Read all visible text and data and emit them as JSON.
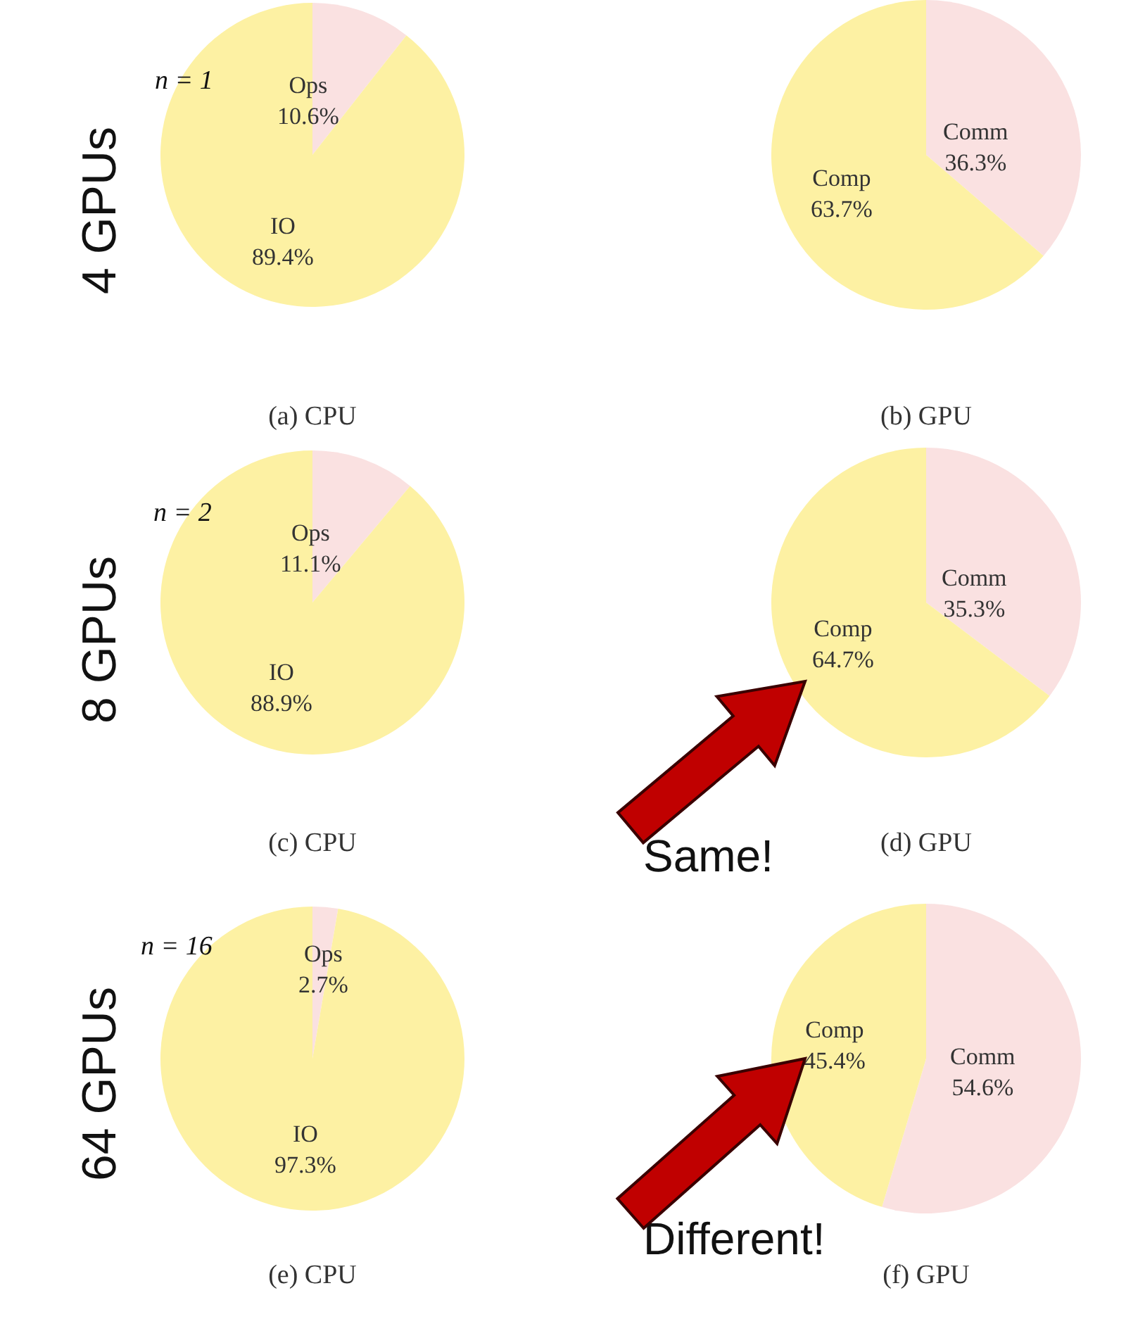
{
  "chart_data": [
    {
      "type": "pie",
      "title": "(a) CPU",
      "categories": [
        "Ops",
        "IO"
      ],
      "values": [
        10.6,
        89.4
      ],
      "value_labels": [
        "10.6%",
        "89.4%"
      ],
      "colors": [
        "#fae1e1",
        "#fdf1a3"
      ],
      "annotations": [
        "n = 1",
        "4 GPUs"
      ]
    },
    {
      "type": "pie",
      "title": "(b) GPU",
      "categories": [
        "Comm",
        "Comp"
      ],
      "values": [
        36.3,
        63.7
      ],
      "value_labels": [
        "36.3%",
        "63.7%"
      ],
      "colors": [
        "#fae1e1",
        "#fdf1a3"
      ]
    },
    {
      "type": "pie",
      "title": "(c) CPU",
      "categories": [
        "Ops",
        "IO"
      ],
      "values": [
        11.1,
        88.9
      ],
      "value_labels": [
        "11.1%",
        "88.9%"
      ],
      "colors": [
        "#fae1e1",
        "#fdf1a3"
      ],
      "annotations": [
        "n = 2",
        "8 GPUs"
      ]
    },
    {
      "type": "pie",
      "title": "(d) GPU",
      "categories": [
        "Comm",
        "Comp"
      ],
      "values": [
        35.3,
        64.7
      ],
      "value_labels": [
        "35.3%",
        "64.7%"
      ],
      "colors": [
        "#fae1e1",
        "#fdf1a3"
      ],
      "annotations": [
        "Same!"
      ]
    },
    {
      "type": "pie",
      "title": "(e) CPU",
      "categories": [
        "Ops",
        "IO"
      ],
      "values": [
        2.7,
        97.3
      ],
      "value_labels": [
        "2.7%",
        "97.3%"
      ],
      "colors": [
        "#fae1e1",
        "#fdf1a3"
      ],
      "annotations": [
        "n = 16",
        "64 GPUs"
      ]
    },
    {
      "type": "pie",
      "title": "(f) GPU",
      "categories": [
        "Comm",
        "Comp"
      ],
      "values": [
        54.6,
        45.4
      ],
      "value_labels": [
        "54.6%",
        "45.4%"
      ],
      "colors": [
        "#fae1e1",
        "#fdf1a3"
      ],
      "annotations": [
        "Different!"
      ]
    }
  ]
}
